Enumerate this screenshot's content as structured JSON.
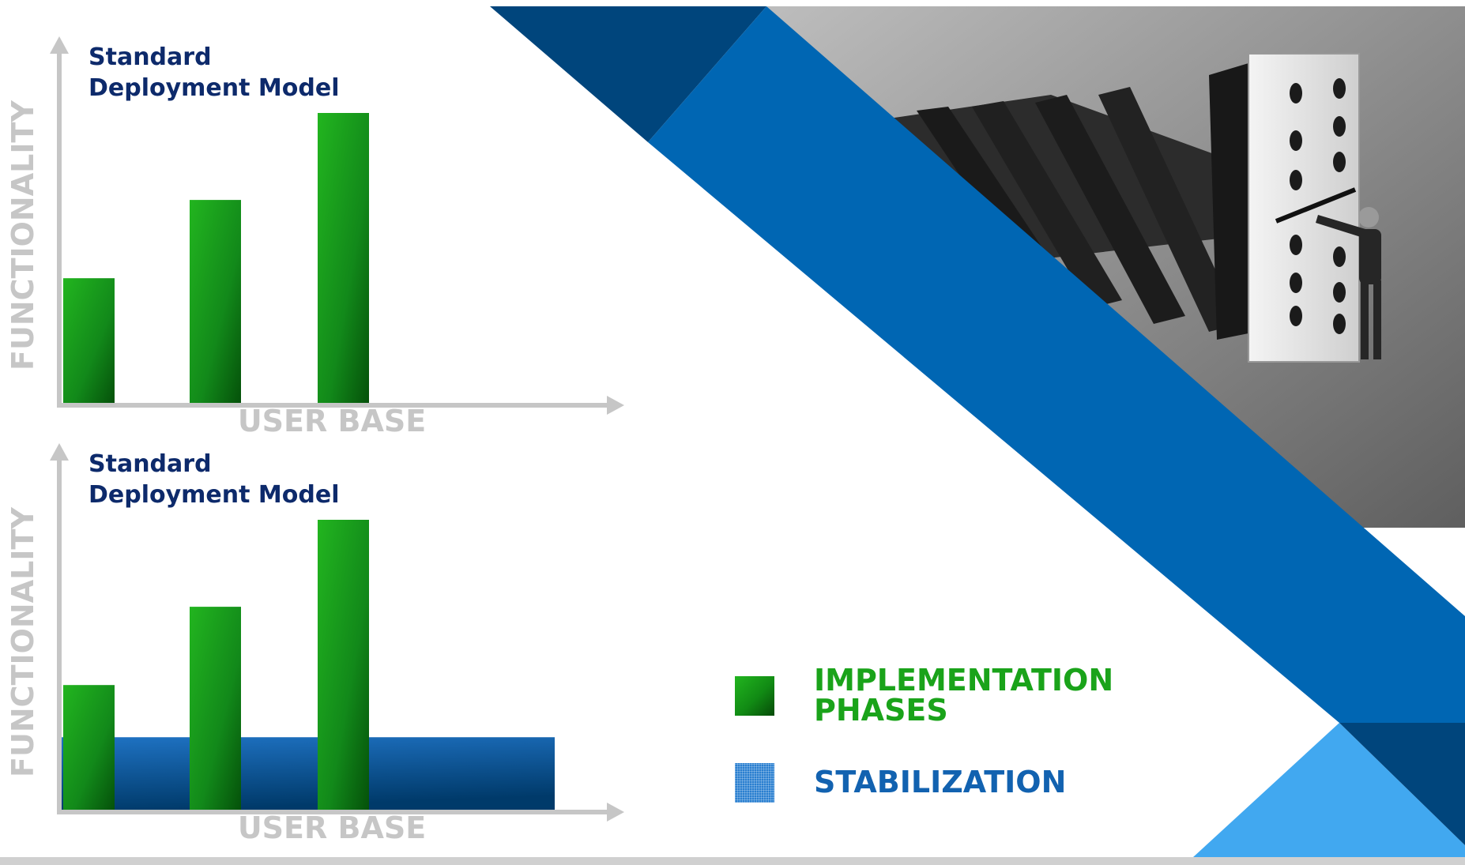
{
  "colors": {
    "implementation": "#1aa31a",
    "stabilization": "#1262b0",
    "title": "#0d2a6b",
    "axis": "#c6c6c6",
    "band_dark": "#00457c",
    "band_mid": "#0066b3",
    "band_light": "#41a8f0"
  },
  "chart_data": [
    {
      "type": "bar",
      "title_lines": [
        "Standard",
        "Deployment Model"
      ],
      "xlabel": "USER BASE",
      "ylabel": "FUNCTIONALITY",
      "categories": [
        "",
        "",
        ""
      ],
      "series": [
        {
          "name": "IMPLEMENTATION PHASES",
          "values": [
            4.3,
            7.0,
            10.0
          ]
        }
      ],
      "ylim": [
        0,
        10
      ],
      "grid": false
    },
    {
      "type": "bar",
      "title_lines": [
        "Standard",
        "Deployment Model"
      ],
      "xlabel": "USER BASE",
      "ylabel": "FUNCTIONALITY",
      "categories": [
        "",
        "",
        ""
      ],
      "series": [
        {
          "name": "IMPLEMENTATION PHASES",
          "values": [
            4.3,
            7.0,
            10.0
          ]
        }
      ],
      "stabilization_level": 2.5,
      "ylim": [
        0,
        10
      ],
      "grid": false
    }
  ],
  "legend": {
    "items": [
      {
        "label": "IMPLEMENTATION\nPHASES",
        "icon": "green-gradient-square"
      },
      {
        "label": "STABILIZATION",
        "icon": "blue-grid-square"
      }
    ]
  },
  "illustration": {
    "icon": "dominoes-with-man-illustration"
  }
}
